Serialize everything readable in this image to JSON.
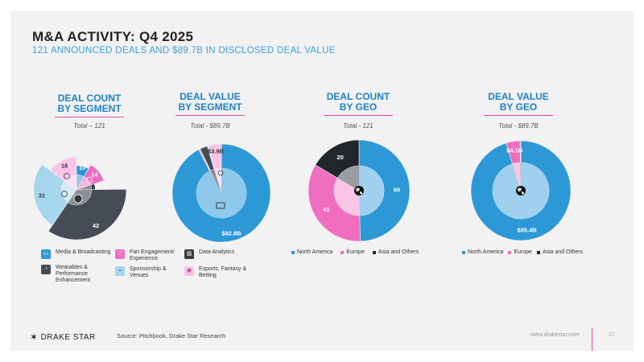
{
  "header": {
    "title": "M&A ACTIVITY: Q4 2025",
    "subtitle": "121 ANNOUNCED DEALS AND $89.7B IN DISCLOSED DEAL VALUE"
  },
  "colors": {
    "media": "#2d98d6",
    "fan": "#f06ec0",
    "data": "#383b40",
    "wearables": "#454c55",
    "sponsorship": "#a6d6ee",
    "esports": "#f9c4e8",
    "na": "#2d98d6",
    "europe": "#f06ec0",
    "asia": "#22262b",
    "accent": "#e84aa3",
    "blue_text": "#1d82c4"
  },
  "panels": {
    "p1": {
      "title_line1": "DEAL COUNT",
      "title_line2": "BY SEGMENT",
      "total": "Total – 121"
    },
    "p2": {
      "title_line1": "DEAL VALUE",
      "title_line2": "BY SEGMENT",
      "total": "Total - $89.7B"
    },
    "p3": {
      "title_line1": "DEAL COUNT",
      "title_line2": "BY GEO",
      "total": "Total - 121"
    },
    "p4": {
      "title_line1": "DEAL VALUE",
      "title_line2": "BY GEO",
      "total": "Total - $89.7B"
    }
  },
  "chart_data": [
    {
      "type": "pie",
      "title": "DEAL COUNT BY SEGMENT",
      "categories": [
        "Media & Broadcasting",
        "Fan Engagement/ Experience",
        "Data Analytics",
        "Wearables & Performance Enhancement",
        "Sponsorship & Venues",
        "Esports, Fantasy & Betting"
      ],
      "values": [
        10,
        14,
        6,
        42,
        31,
        18
      ],
      "labels": [
        "10",
        "14",
        "6",
        "42",
        "31",
        "18"
      ],
      "style": "polar"
    },
    {
      "type": "pie",
      "title": "DEAL VALUE BY SEGMENT",
      "categories": [
        "Media & Broadcasting",
        "Fan Engagement/ Experience",
        "Data Analytics",
        "Wearables & Performance Enhancement",
        "Sponsorship & Venues",
        "Esports, Fantasy & Betting"
      ],
      "values": [
        82.8,
        0.3,
        0.2,
        2.2,
        0.3,
        3.9
      ],
      "labels": [
        "$82.8B",
        "",
        "",
        "",
        "",
        "$3.9B"
      ],
      "style": "donut"
    },
    {
      "type": "pie",
      "title": "DEAL COUNT BY GEO",
      "categories": [
        "North America",
        "Europe",
        "Asia and Others"
      ],
      "values": [
        60,
        41,
        20
      ],
      "labels": [
        "60",
        "41",
        "20"
      ],
      "style": "donut"
    },
    {
      "type": "pie",
      "title": "DEAL VALUE BY GEO",
      "categories": [
        "North America",
        "Europe",
        "Asia and Others"
      ],
      "values": [
        85.4,
        4.1,
        0.2
      ],
      "labels": [
        "$85.4B",
        "$4.1B",
        ""
      ],
      "style": "donut"
    }
  ],
  "legend_segments": [
    {
      "label": "Media & Broadcasting",
      "icon": "broadcast-icon"
    },
    {
      "label": "Fan Engagement/ Experience",
      "icon": "heart-hand-icon"
    },
    {
      "label": "Data Analytics",
      "icon": "bar-chart-icon"
    },
    {
      "label": "Wearables & Performance Enhancement",
      "icon": "gauge-icon"
    },
    {
      "label": "Sponsorship & Venues",
      "icon": "location-pin-icon"
    },
    {
      "label": "Esports, Fantasy & Betting",
      "icon": "gamepad-icon"
    }
  ],
  "legend_geo": [
    "North America",
    "Europe",
    "Asia and Others"
  ],
  "footer": {
    "logo": "DRAKE STAR",
    "source": "Source: Pitchbook, Drake Star Research",
    "url": "www.drakestar.com",
    "page": "17"
  }
}
